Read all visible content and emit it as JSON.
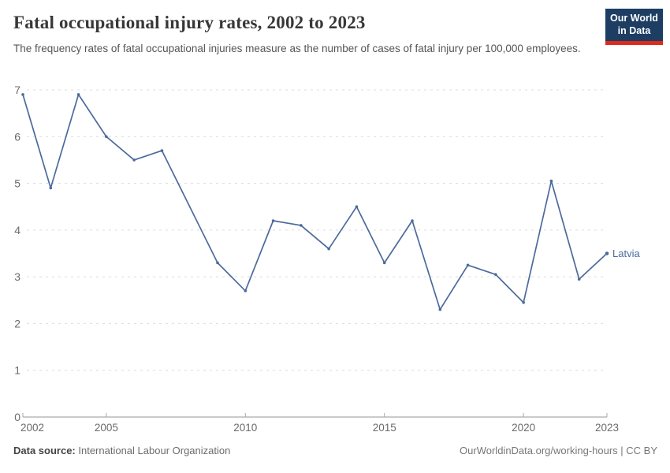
{
  "header": {
    "title": "Fatal occupational injury rates, 2002 to 2023",
    "subtitle": "The frequency rates of fatal occupational injuries measure as the number of cases of fatal injury per 100,000 employees.",
    "logo": {
      "line1": "Our World",
      "line2": "in Data"
    }
  },
  "chart_data": {
    "type": "line",
    "title": "Fatal occupational injury rates, 2002 to 2023",
    "xlabel": "",
    "ylabel": "",
    "x": [
      2002,
      2003,
      2004,
      2005,
      2006,
      2007,
      2009,
      2010,
      2011,
      2012,
      2013,
      2014,
      2015,
      2016,
      2017,
      2018,
      2019,
      2020,
      2021,
      2022,
      2023
    ],
    "series": [
      {
        "name": "Latvia",
        "color": "#4C6A9C",
        "values": [
          6.9,
          4.9,
          6.9,
          6.0,
          5.5,
          5.7,
          3.3,
          2.7,
          4.2,
          4.1,
          3.6,
          4.5,
          3.3,
          4.2,
          2.3,
          3.25,
          3.05,
          2.45,
          5.05,
          2.95,
          3.5
        ]
      }
    ],
    "x_ticks": [
      2002,
      2005,
      2010,
      2015,
      2020,
      2023
    ],
    "y_ticks": [
      0,
      1,
      2,
      3,
      4,
      5,
      6,
      7
    ],
    "xlim": [
      2002,
      2023
    ],
    "ylim": [
      0,
      7
    ],
    "grid": "horizontal-dashed",
    "legend": "end-of-line-label",
    "end_label": "Latvia"
  },
  "footer": {
    "source_label": "Data source:",
    "source_value": "International Labour Organization",
    "credit": "OurWorldinData.org/working-hours | CC BY"
  },
  "colors": {
    "line": "#4C6A9C",
    "grid": "#dcdcdc",
    "axis": "#949494",
    "tick_label": "#6b6b6b",
    "logo_bg": "#1d3d63",
    "logo_accent": "#dc2a1c"
  }
}
